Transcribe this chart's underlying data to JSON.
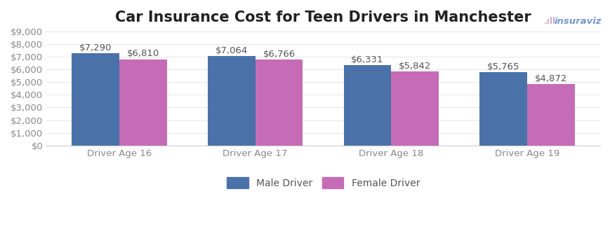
{
  "title": "Car Insurance Cost for Teen Drivers in Manchester",
  "categories": [
    "Driver Age 16",
    "Driver Age 17",
    "Driver Age 18",
    "Driver Age 19"
  ],
  "male_values": [
    7290,
    7064,
    6331,
    5765
  ],
  "female_values": [
    6810,
    6766,
    5842,
    4872
  ],
  "male_color": "#4a72a8",
  "female_color": "#c66bb5",
  "ylim": [
    0,
    9000
  ],
  "yticks": [
    0,
    1000,
    2000,
    3000,
    4000,
    5000,
    6000,
    7000,
    8000,
    9000
  ],
  "bar_width": 0.35,
  "background_color": "#ffffff",
  "plot_bg_color": "#ffffff",
  "grid_color": "#e8e8e8",
  "legend_labels": [
    "Male Driver",
    "Female Driver"
  ],
  "title_fontsize": 15,
  "tick_fontsize": 9.5,
  "annotation_fontsize": 9.5,
  "tick_color": "#888888",
  "annotation_color": "#555555",
  "watermark_text": "insuraviz",
  "watermark_color": "#6699cc"
}
